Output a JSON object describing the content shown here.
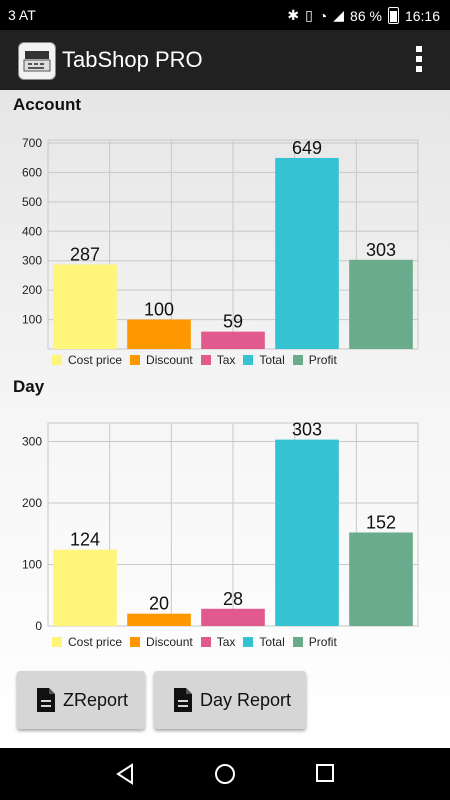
{
  "status_bar": {
    "carrier": "3 AT",
    "battery": "86 %",
    "time": "16:16"
  },
  "app": {
    "title": "TabShop PRO"
  },
  "sections": {
    "account_title": "Account",
    "day_title": "Day"
  },
  "colors": {
    "Cost price": "#fff57a",
    "Discount": "#ff9800",
    "Tax": "#e05a8e",
    "Total": "#35c3d3",
    "Profit": "#6aab8b"
  },
  "chart_data": [
    {
      "type": "bar",
      "categories": [
        "Cost price",
        "Discount",
        "Tax",
        "Total",
        "Profit"
      ],
      "values": [
        287,
        100,
        59,
        649,
        303
      ],
      "yticks": [
        100,
        200,
        300,
        400,
        500,
        600,
        700
      ],
      "ylim": [
        0,
        710
      ],
      "legend": [
        "Cost price",
        "Discount",
        "Tax",
        "Total",
        "Profit"
      ],
      "grid": true,
      "legend_position": "bottom"
    },
    {
      "type": "bar",
      "categories": [
        "Cost price",
        "Discount",
        "Tax",
        "Total",
        "Profit"
      ],
      "values": [
        124,
        20,
        28,
        303,
        152
      ],
      "yticks": [
        0,
        100,
        200,
        300
      ],
      "ylim": [
        0,
        330
      ],
      "legend": [
        "Cost price",
        "Discount",
        "Tax",
        "Total",
        "Profit"
      ],
      "grid": true,
      "legend_position": "bottom"
    }
  ],
  "buttons": {
    "zreport": "ZReport",
    "day_report": "Day Report"
  },
  "icons": {
    "app": "cash-register-icon",
    "menu": "overflow-menu-icon",
    "doc": "document-icon",
    "back": "back-icon",
    "home": "home-icon",
    "recent": "recent-apps-icon"
  }
}
